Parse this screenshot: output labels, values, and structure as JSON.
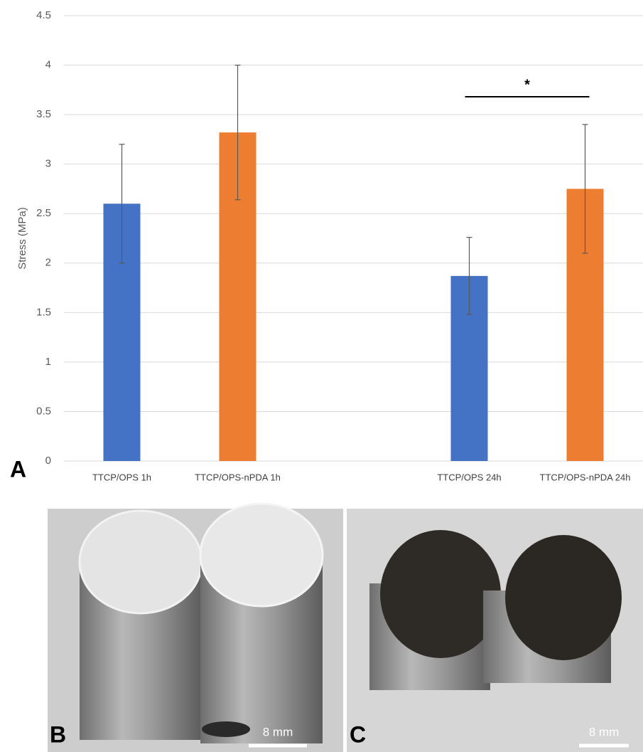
{
  "chart_data": {
    "type": "bar",
    "ylabel": "Stress (MPa)",
    "categories": [
      "TTCP/OPS 1h",
      "TTCP/OPS-nPDA 1h",
      null,
      "TTCP/OPS 24h",
      "TTCP/OPS-nPDA 24h"
    ],
    "values": [
      2.6,
      3.32,
      null,
      1.87,
      2.75
    ],
    "errors": [
      0.6,
      0.68,
      null,
      0.39,
      0.65
    ],
    "colors": [
      "#4472c4",
      "#ed7d31",
      null,
      "#4472c4",
      "#ed7d31"
    ],
    "ylim": [
      0,
      4.5
    ],
    "yticks": [
      0,
      0.5,
      1,
      1.5,
      2,
      2.5,
      3,
      3.5,
      4,
      4.5
    ],
    "grid": true,
    "annotation": "*"
  },
  "panel_labels": [
    "A",
    "B",
    "C"
  ],
  "scale_bars": [
    "8 mm",
    "8 mm"
  ]
}
